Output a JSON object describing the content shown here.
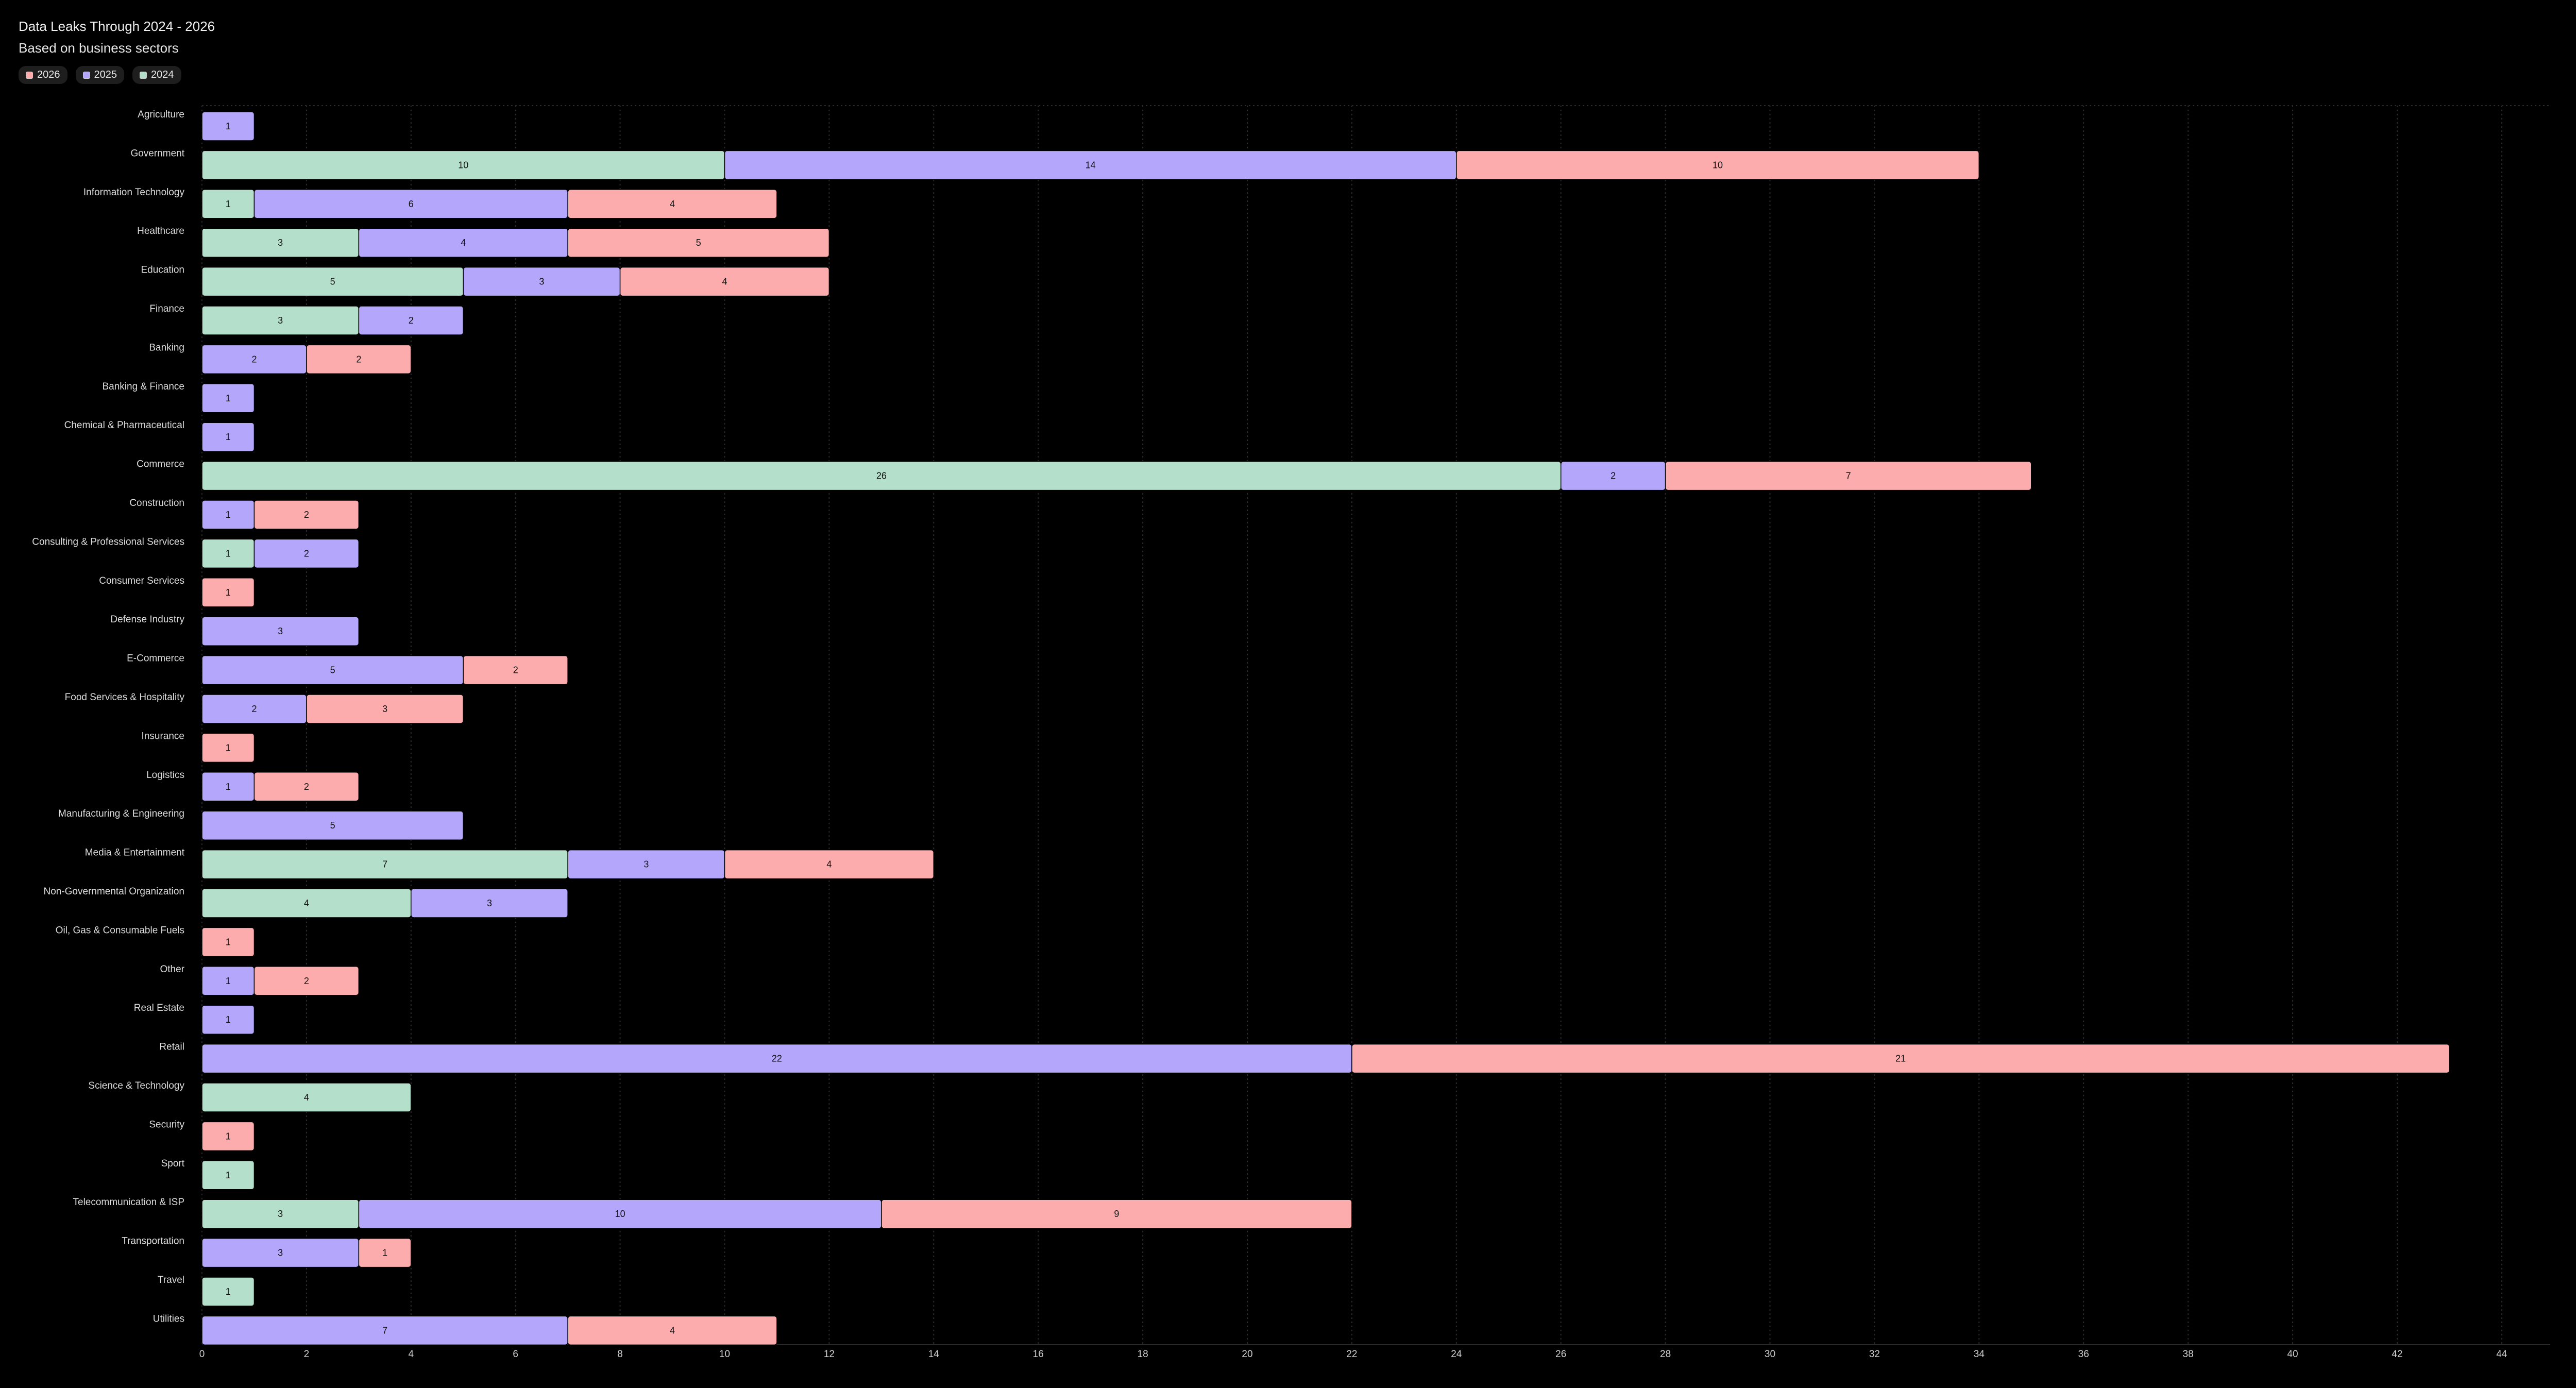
{
  "chart_data": {
    "type": "bar",
    "orientation": "horizontal",
    "stacked": true,
    "title": "Data Leaks Through 2024 - 2026",
    "subtitle": "Based on business sectors",
    "legend_position": "top-left",
    "grid": true,
    "xlim": [
      0,
      45
    ],
    "x_ticks": [
      0,
      2,
      4,
      6,
      8,
      10,
      12,
      14,
      16,
      18,
      20,
      22,
      24,
      26,
      28,
      30,
      32,
      34,
      36,
      38,
      40,
      42,
      44
    ],
    "categories": [
      "Agriculture",
      "Government",
      "Information Technology",
      "Healthcare",
      "Education",
      "Finance",
      "Banking",
      "Banking & Finance",
      "Chemical & Pharmaceutical",
      "Commerce",
      "Construction",
      "Consulting & Professional Services",
      "Consumer Services",
      "Defense Industry",
      "E-Commerce",
      "Food Services & Hospitality",
      "Insurance",
      "Logistics",
      "Manufacturing & Engineering",
      "Media & Entertainment",
      "Non-Governmental Organization",
      "Oil, Gas & Consumable Fuels",
      "Other",
      "Real Estate",
      "Retail",
      "Science & Technology",
      "Security",
      "Sport",
      "Telecommunication & ISP",
      "Transportation",
      "Travel",
      "Utilities"
    ],
    "series": [
      {
        "name": "2024",
        "color": "#b4dfcb",
        "values": [
          0,
          10,
          1,
          3,
          5,
          3,
          0,
          0,
          0,
          26,
          0,
          1,
          0,
          0,
          0,
          0,
          0,
          0,
          0,
          7,
          4,
          0,
          0,
          0,
          0,
          4,
          0,
          1,
          3,
          0,
          1,
          0
        ]
      },
      {
        "name": "2025",
        "color": "#b3a6fb",
        "values": [
          1,
          14,
          6,
          4,
          3,
          2,
          2,
          1,
          1,
          2,
          1,
          2,
          0,
          3,
          5,
          2,
          0,
          1,
          5,
          3,
          3,
          0,
          1,
          1,
          22,
          0,
          0,
          0,
          10,
          3,
          0,
          7
        ]
      },
      {
        "name": "2026",
        "color": "#fcacac",
        "values": [
          0,
          10,
          4,
          5,
          4,
          0,
          2,
          0,
          0,
          7,
          2,
          0,
          1,
          0,
          2,
          3,
          1,
          2,
          0,
          4,
          0,
          1,
          2,
          0,
          21,
          0,
          1,
          0,
          9,
          1,
          0,
          4
        ]
      }
    ]
  },
  "legend": [
    {
      "label": "2026",
      "color": "#fcacac"
    },
    {
      "label": "2025",
      "color": "#b3a6fb"
    },
    {
      "label": "2024",
      "color": "#b4dfcb"
    }
  ]
}
